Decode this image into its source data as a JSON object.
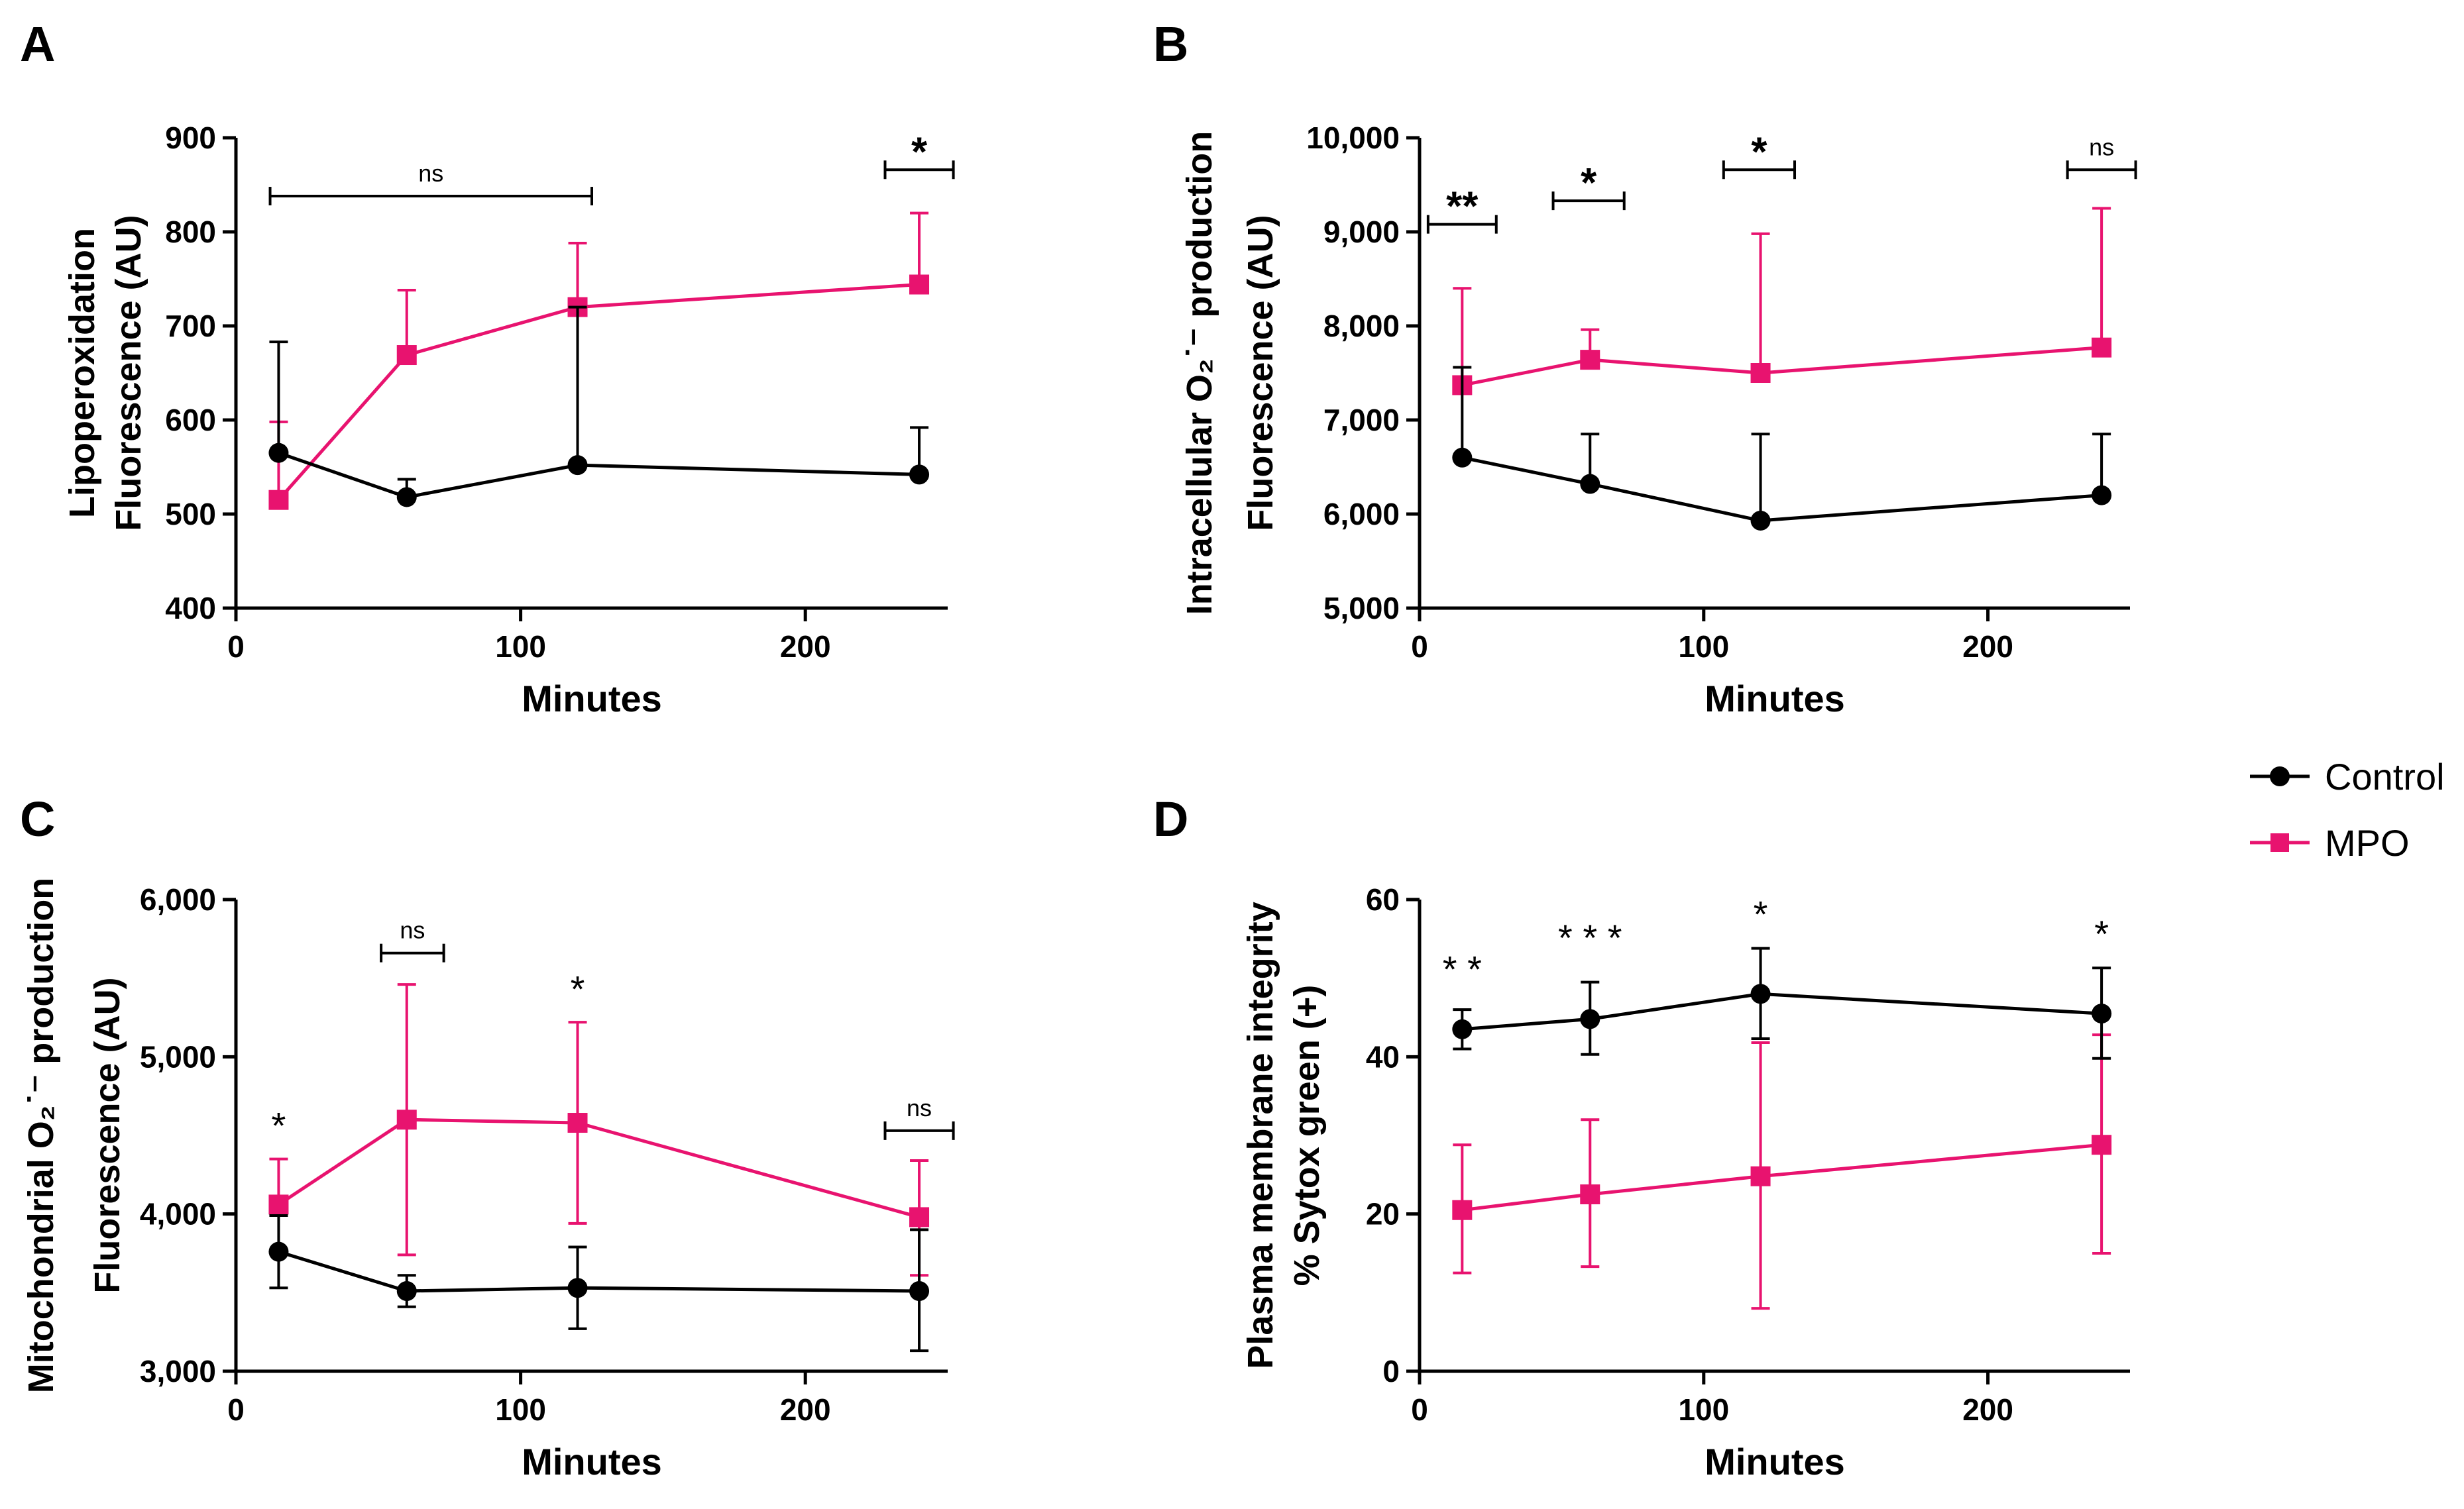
{
  "colors": {
    "control": "#000000",
    "mpo": "#e8136f",
    "axis": "#000000"
  },
  "legend": {
    "control_label": "Control",
    "mpo_label": "MPO",
    "control_marker": "circle",
    "mpo_marker": "square"
  },
  "chart_data": [
    {
      "panel": "A",
      "type": "line",
      "title": "",
      "xlabel": "Minutes",
      "ylabel": [
        "Lipoperoxidation",
        "Fluorescence (AU)"
      ],
      "xlim": [
        0,
        250
      ],
      "ylim": [
        400,
        900
      ],
      "xticks": [
        0,
        100,
        200
      ],
      "xtick_labels": [
        "0",
        "100",
        "200"
      ],
      "yticks": [
        400,
        500,
        600,
        700,
        800,
        900
      ],
      "ytick_labels": [
        "400",
        "500",
        "600",
        "700",
        "800",
        "900"
      ],
      "x": [
        15,
        60,
        120,
        240
      ],
      "series": [
        {
          "name": "Control",
          "values": [
            565,
            518,
            552,
            542
          ],
          "err_up": [
            683,
            537,
            720,
            592
          ],
          "err_down": [
            null,
            null,
            null,
            null
          ]
        },
        {
          "name": "MPO",
          "values": [
            515,
            669,
            720,
            744
          ],
          "err_up": [
            598,
            738,
            788,
            820
          ],
          "err_down": [
            null,
            null,
            null,
            null
          ]
        }
      ],
      "annotations": [
        {
          "text": "ns",
          "x1": 12,
          "x2": 125,
          "y": 838,
          "bracket": true,
          "big": false
        },
        {
          "text": "*",
          "x1": 228,
          "x2": 252,
          "y": 866,
          "bracket": true,
          "big": true
        }
      ]
    },
    {
      "panel": "B",
      "type": "line",
      "title": "",
      "xlabel": "Minutes",
      "ylabel": [
        "Intracellular O₂˙⁻ production",
        "Fluorescence (AU)"
      ],
      "xlim": [
        0,
        250
      ],
      "ylim": [
        5000,
        10000
      ],
      "xticks": [
        0,
        100,
        200
      ],
      "xtick_labels": [
        "0",
        "100",
        "200"
      ],
      "yticks": [
        5000,
        6000,
        7000,
        8000,
        9000,
        10000
      ],
      "ytick_labels": [
        "5,000",
        "6,000",
        "7,000",
        "8,000",
        "9,000",
        "10,000"
      ],
      "x": [
        15,
        60,
        120,
        240
      ],
      "series": [
        {
          "name": "Control",
          "values": [
            6600,
            6320,
            5930,
            6200
          ],
          "err_up": [
            7560,
            6850,
            6850,
            6850
          ],
          "err_down": [
            null,
            null,
            null,
            null
          ]
        },
        {
          "name": "MPO",
          "values": [
            7370,
            7640,
            7500,
            7770
          ],
          "err_up": [
            8400,
            7960,
            8980,
            9250
          ],
          "err_down": [
            null,
            null,
            null,
            null
          ]
        }
      ],
      "annotations": [
        {
          "text": "**",
          "x1": 3,
          "x2": 27,
          "y": 9080,
          "bracket": true,
          "big": true
        },
        {
          "text": "*",
          "x1": 47,
          "x2": 72,
          "y": 9330,
          "bracket": true,
          "big": true
        },
        {
          "text": "*",
          "x1": 107,
          "x2": 132,
          "y": 9660,
          "bracket": true,
          "big": true
        },
        {
          "text": "ns",
          "x1": 228,
          "x2": 252,
          "y": 9660,
          "bracket": true,
          "big": false
        }
      ]
    },
    {
      "panel": "C",
      "type": "line",
      "title": "",
      "xlabel": "Minutes",
      "ylabel": [
        "Mitochondrial O₂˙⁻ production",
        "Fluorescence (AU)"
      ],
      "xlim": [
        0,
        250
      ],
      "ylim": [
        3000,
        6000
      ],
      "xticks": [
        0,
        100,
        200
      ],
      "xtick_labels": [
        "0",
        "100",
        "200"
      ],
      "yticks": [
        3000,
        4000,
        5000,
        6000
      ],
      "ytick_labels": [
        "3,000",
        "4,000",
        "5,000",
        "6,000"
      ],
      "x": [
        15,
        60,
        120,
        240
      ],
      "series": [
        {
          "name": "Control",
          "values": [
            3760,
            3510,
            3530,
            3510
          ],
          "err_up": [
            3990,
            3610,
            3790,
            3900
          ],
          "err_down": [
            3530,
            3410,
            3270,
            3130
          ]
        },
        {
          "name": "MPO",
          "values": [
            4060,
            4600,
            4580,
            3980
          ],
          "err_up": [
            4350,
            5460,
            5220,
            4340
          ],
          "err_down": [
            null,
            3740,
            3940,
            3610
          ]
        }
      ],
      "annotations": [
        {
          "text": "*",
          "x": 15,
          "y": 4480,
          "bracket": false,
          "big": false
        },
        {
          "text": "ns",
          "x1": 51,
          "x2": 73,
          "y": 5660,
          "bracket": true,
          "big": false
        },
        {
          "text": "*",
          "x": 120,
          "y": 5350,
          "bracket": false,
          "big": false
        },
        {
          "text": "ns",
          "x1": 228,
          "x2": 252,
          "y": 4530,
          "bracket": true,
          "big": false
        }
      ]
    },
    {
      "panel": "D",
      "type": "line",
      "title": "",
      "xlabel": "Minutes",
      "ylabel": [
        "Plasma membrane integrity",
        "% Sytox green (+)"
      ],
      "xlim": [
        0,
        250
      ],
      "ylim": [
        0,
        60
      ],
      "xticks": [
        0,
        100,
        200
      ],
      "xtick_labels": [
        "0",
        "100",
        "200"
      ],
      "yticks": [
        0,
        20,
        40,
        60
      ],
      "ytick_labels": [
        "0",
        "20",
        "40",
        "60"
      ],
      "x": [
        15,
        60,
        120,
        240
      ],
      "series": [
        {
          "name": "Control",
          "values": [
            43.5,
            44.8,
            48.0,
            45.5
          ],
          "err_up": [
            46.0,
            49.5,
            53.8,
            51.3
          ],
          "err_down": [
            41.0,
            40.3,
            42.3,
            39.8
          ]
        },
        {
          "name": "MPO",
          "values": [
            20.5,
            22.5,
            24.8,
            28.8
          ],
          "err_up": [
            28.8,
            32.0,
            41.8,
            42.8
          ],
          "err_down": [
            12.5,
            13.3,
            8.0,
            15.0
          ]
        }
      ],
      "annotations": [
        {
          "text": "* *",
          "x": 15,
          "y": 49.5,
          "bracket": false,
          "big": false
        },
        {
          "text": "* * *",
          "x": 60,
          "y": 53.5,
          "bracket": false,
          "big": false
        },
        {
          "text": "*",
          "x": 120,
          "y": 56.5,
          "bracket": false,
          "big": false
        },
        {
          "text": "*",
          "x": 240,
          "y": 54.0,
          "bracket": false,
          "big": false
        }
      ]
    }
  ]
}
